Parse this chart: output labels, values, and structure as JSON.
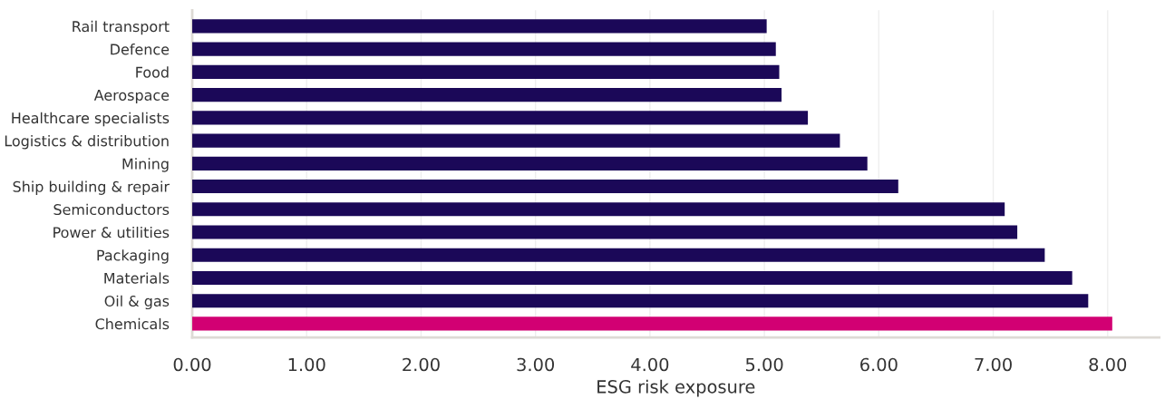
{
  "chart_data": {
    "type": "bar",
    "orientation": "horizontal",
    "xlabel": "ESG risk exposure",
    "categories": [
      "Rail transport",
      "Defence",
      "Food",
      "Aerospace",
      "Healthcare specialists",
      "Logistics & distribution",
      "Mining",
      "Ship building & repair",
      "Semiconductors",
      "Power & utilities",
      "Packaging",
      "Materials",
      "Oil & gas",
      "Chemicals"
    ],
    "values": [
      5.02,
      5.1,
      5.13,
      5.15,
      5.38,
      5.66,
      5.9,
      6.17,
      7.1,
      7.21,
      7.45,
      7.69,
      7.83,
      8.04
    ],
    "colors": [
      "#1b0858",
      "#1b0858",
      "#1b0858",
      "#1b0858",
      "#1b0858",
      "#1b0858",
      "#1b0858",
      "#1b0858",
      "#1b0858",
      "#1b0858",
      "#1b0858",
      "#1b0858",
      "#1b0858",
      "#d20073"
    ],
    "xlim": [
      0,
      8.45
    ],
    "xticks": [
      {
        "value": 0,
        "label": "0.00"
      },
      {
        "value": 1,
        "label": "1.00"
      },
      {
        "value": 2,
        "label": "2.00"
      },
      {
        "value": 3,
        "label": "3.00"
      },
      {
        "value": 4,
        "label": "4.00"
      },
      {
        "value": 5,
        "label": "5.00"
      },
      {
        "value": 6,
        "label": "6.00"
      },
      {
        "value": 7,
        "label": "7.00"
      },
      {
        "value": 8,
        "label": "8.00"
      }
    ],
    "grid": "x",
    "legend": false
  }
}
